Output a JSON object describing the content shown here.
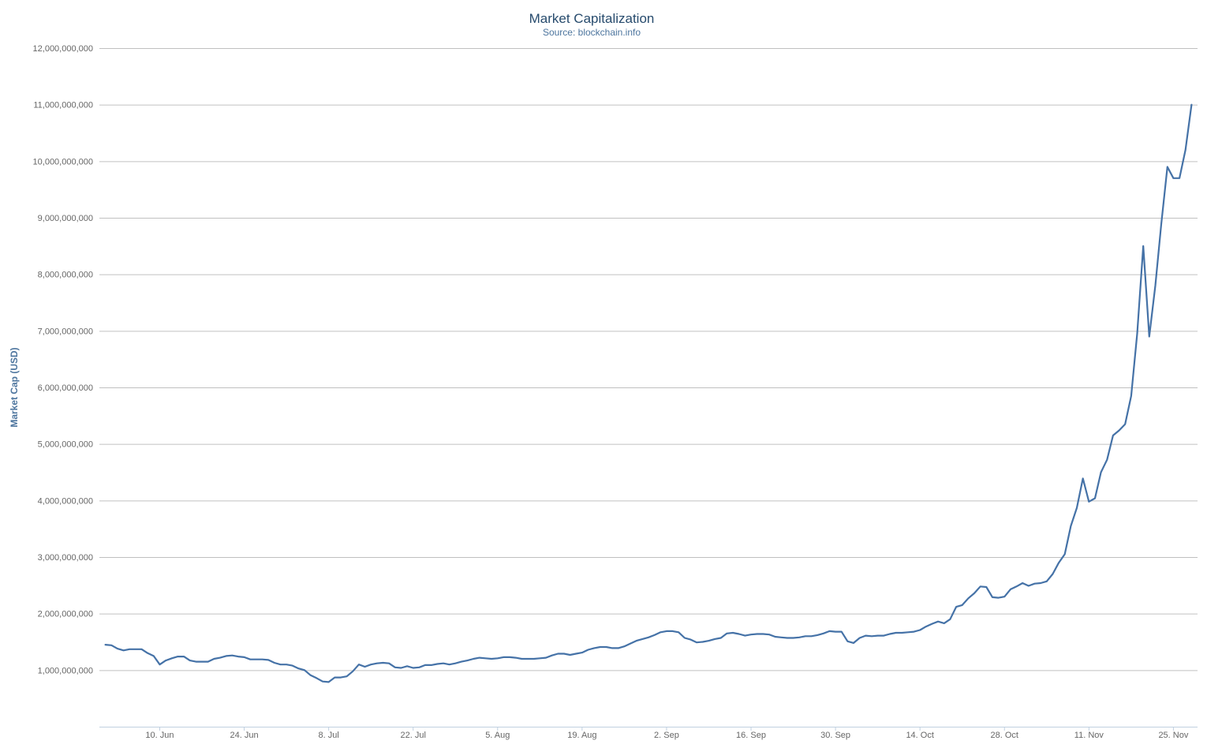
{
  "chart_data": {
    "type": "line",
    "title": "Market Capitalization",
    "subtitle": "Source: blockchain.info",
    "ylabel": "Market Cap (USD)",
    "xlabel": "",
    "x_range": [
      "2013-05-31",
      "2013-11-29"
    ],
    "ylim": [
      0,
      12000000000
    ],
    "grid": true,
    "legend": "none",
    "y_ticks": [
      {
        "value": 1000000000,
        "label": "1,000,000,000"
      },
      {
        "value": 2000000000,
        "label": "2,000,000,000"
      },
      {
        "value": 3000000000,
        "label": "3,000,000,000"
      },
      {
        "value": 4000000000,
        "label": "4,000,000,000"
      },
      {
        "value": 5000000000,
        "label": "5,000,000,000"
      },
      {
        "value": 6000000000,
        "label": "6,000,000,000"
      },
      {
        "value": 7000000000,
        "label": "7,000,000,000"
      },
      {
        "value": 8000000000,
        "label": "8,000,000,000"
      },
      {
        "value": 9000000000,
        "label": "9,000,000,000"
      },
      {
        "value": 10000000000,
        "label": "10,000,000,000"
      },
      {
        "value": 11000000000,
        "label": "11,000,000,000"
      },
      {
        "value": 12000000000,
        "label": "12,000,000,000"
      }
    ],
    "x_ticks": [
      {
        "date": "2013-06-10",
        "label": "10. Jun"
      },
      {
        "date": "2013-06-24",
        "label": "24. Jun"
      },
      {
        "date": "2013-07-08",
        "label": "8. Jul"
      },
      {
        "date": "2013-07-22",
        "label": "22. Jul"
      },
      {
        "date": "2013-08-05",
        "label": "5. Aug"
      },
      {
        "date": "2013-08-19",
        "label": "19. Aug"
      },
      {
        "date": "2013-09-02",
        "label": "2. Sep"
      },
      {
        "date": "2013-09-16",
        "label": "16. Sep"
      },
      {
        "date": "2013-09-30",
        "label": "30. Sep"
      },
      {
        "date": "2013-10-14",
        "label": "14. Oct"
      },
      {
        "date": "2013-10-28",
        "label": "28. Oct"
      },
      {
        "date": "2013-11-11",
        "label": "11. Nov"
      },
      {
        "date": "2013-11-25",
        "label": "25. Nov"
      }
    ],
    "series": [
      {
        "color": "#4572a7",
        "points": [
          [
            "2013-06-01",
            1450000000
          ],
          [
            "2013-06-02",
            1440000000
          ],
          [
            "2013-06-03",
            1380000000
          ],
          [
            "2013-06-04",
            1350000000
          ],
          [
            "2013-06-05",
            1370000000
          ],
          [
            "2013-06-06",
            1370000000
          ],
          [
            "2013-06-07",
            1370000000
          ],
          [
            "2013-06-08",
            1300000000
          ],
          [
            "2013-06-09",
            1250000000
          ],
          [
            "2013-06-10",
            1100000000
          ],
          [
            "2013-06-11",
            1170000000
          ],
          [
            "2013-06-12",
            1210000000
          ],
          [
            "2013-06-13",
            1240000000
          ],
          [
            "2013-06-14",
            1240000000
          ],
          [
            "2013-06-15",
            1170000000
          ],
          [
            "2013-06-16",
            1150000000
          ],
          [
            "2013-06-17",
            1150000000
          ],
          [
            "2013-06-18",
            1150000000
          ],
          [
            "2013-06-19",
            1200000000
          ],
          [
            "2013-06-20",
            1220000000
          ],
          [
            "2013-06-21",
            1250000000
          ],
          [
            "2013-06-22",
            1260000000
          ],
          [
            "2013-06-23",
            1240000000
          ],
          [
            "2013-06-24",
            1230000000
          ],
          [
            "2013-06-25",
            1190000000
          ],
          [
            "2013-06-26",
            1190000000
          ],
          [
            "2013-06-27",
            1190000000
          ],
          [
            "2013-06-28",
            1180000000
          ],
          [
            "2013-06-29",
            1130000000
          ],
          [
            "2013-06-30",
            1100000000
          ],
          [
            "2013-07-01",
            1100000000
          ],
          [
            "2013-07-02",
            1080000000
          ],
          [
            "2013-07-03",
            1030000000
          ],
          [
            "2013-07-04",
            1000000000
          ],
          [
            "2013-07-05",
            910000000
          ],
          [
            "2013-07-06",
            860000000
          ],
          [
            "2013-07-07",
            800000000
          ],
          [
            "2013-07-08",
            790000000
          ],
          [
            "2013-07-09",
            870000000
          ],
          [
            "2013-07-10",
            870000000
          ],
          [
            "2013-07-11",
            890000000
          ],
          [
            "2013-07-12",
            980000000
          ],
          [
            "2013-07-13",
            1100000000
          ],
          [
            "2013-07-14",
            1060000000
          ],
          [
            "2013-07-15",
            1100000000
          ],
          [
            "2013-07-16",
            1120000000
          ],
          [
            "2013-07-17",
            1130000000
          ],
          [
            "2013-07-18",
            1120000000
          ],
          [
            "2013-07-19",
            1050000000
          ],
          [
            "2013-07-20",
            1040000000
          ],
          [
            "2013-07-21",
            1070000000
          ],
          [
            "2013-07-22",
            1040000000
          ],
          [
            "2013-07-23",
            1050000000
          ],
          [
            "2013-07-24",
            1090000000
          ],
          [
            "2013-07-25",
            1090000000
          ],
          [
            "2013-07-26",
            1110000000
          ],
          [
            "2013-07-27",
            1120000000
          ],
          [
            "2013-07-28",
            1100000000
          ],
          [
            "2013-07-29",
            1120000000
          ],
          [
            "2013-07-30",
            1150000000
          ],
          [
            "2013-07-31",
            1170000000
          ],
          [
            "2013-08-01",
            1200000000
          ],
          [
            "2013-08-02",
            1220000000
          ],
          [
            "2013-08-03",
            1210000000
          ],
          [
            "2013-08-04",
            1200000000
          ],
          [
            "2013-08-05",
            1210000000
          ],
          [
            "2013-08-06",
            1230000000
          ],
          [
            "2013-08-07",
            1230000000
          ],
          [
            "2013-08-08",
            1220000000
          ],
          [
            "2013-08-09",
            1200000000
          ],
          [
            "2013-08-10",
            1200000000
          ],
          [
            "2013-08-11",
            1200000000
          ],
          [
            "2013-08-12",
            1210000000
          ],
          [
            "2013-08-13",
            1220000000
          ],
          [
            "2013-08-14",
            1260000000
          ],
          [
            "2013-08-15",
            1290000000
          ],
          [
            "2013-08-16",
            1290000000
          ],
          [
            "2013-08-17",
            1270000000
          ],
          [
            "2013-08-18",
            1290000000
          ],
          [
            "2013-08-19",
            1310000000
          ],
          [
            "2013-08-20",
            1360000000
          ],
          [
            "2013-08-21",
            1390000000
          ],
          [
            "2013-08-22",
            1410000000
          ],
          [
            "2013-08-23",
            1410000000
          ],
          [
            "2013-08-24",
            1390000000
          ],
          [
            "2013-08-25",
            1390000000
          ],
          [
            "2013-08-26",
            1420000000
          ],
          [
            "2013-08-27",
            1470000000
          ],
          [
            "2013-08-28",
            1520000000
          ],
          [
            "2013-08-29",
            1550000000
          ],
          [
            "2013-08-30",
            1580000000
          ],
          [
            "2013-08-31",
            1620000000
          ],
          [
            "2013-09-01",
            1670000000
          ],
          [
            "2013-09-02",
            1690000000
          ],
          [
            "2013-09-03",
            1690000000
          ],
          [
            "2013-09-04",
            1670000000
          ],
          [
            "2013-09-05",
            1570000000
          ],
          [
            "2013-09-06",
            1540000000
          ],
          [
            "2013-09-07",
            1490000000
          ],
          [
            "2013-09-08",
            1500000000
          ],
          [
            "2013-09-09",
            1520000000
          ],
          [
            "2013-09-10",
            1550000000
          ],
          [
            "2013-09-11",
            1570000000
          ],
          [
            "2013-09-12",
            1650000000
          ],
          [
            "2013-09-13",
            1660000000
          ],
          [
            "2013-09-14",
            1640000000
          ],
          [
            "2013-09-15",
            1610000000
          ],
          [
            "2013-09-16",
            1630000000
          ],
          [
            "2013-09-17",
            1640000000
          ],
          [
            "2013-09-18",
            1640000000
          ],
          [
            "2013-09-19",
            1630000000
          ],
          [
            "2013-09-20",
            1590000000
          ],
          [
            "2013-09-21",
            1580000000
          ],
          [
            "2013-09-22",
            1570000000
          ],
          [
            "2013-09-23",
            1570000000
          ],
          [
            "2013-09-24",
            1580000000
          ],
          [
            "2013-09-25",
            1600000000
          ],
          [
            "2013-09-26",
            1600000000
          ],
          [
            "2013-09-27",
            1620000000
          ],
          [
            "2013-09-28",
            1650000000
          ],
          [
            "2013-09-29",
            1690000000
          ],
          [
            "2013-09-30",
            1680000000
          ],
          [
            "2013-10-01",
            1680000000
          ],
          [
            "2013-10-02",
            1510000000
          ],
          [
            "2013-10-03",
            1480000000
          ],
          [
            "2013-10-04",
            1570000000
          ],
          [
            "2013-10-05",
            1610000000
          ],
          [
            "2013-10-06",
            1600000000
          ],
          [
            "2013-10-07",
            1610000000
          ],
          [
            "2013-10-08",
            1610000000
          ],
          [
            "2013-10-09",
            1640000000
          ],
          [
            "2013-10-10",
            1660000000
          ],
          [
            "2013-10-11",
            1660000000
          ],
          [
            "2013-10-12",
            1670000000
          ],
          [
            "2013-10-13",
            1680000000
          ],
          [
            "2013-10-14",
            1710000000
          ],
          [
            "2013-10-15",
            1770000000
          ],
          [
            "2013-10-16",
            1820000000
          ],
          [
            "2013-10-17",
            1860000000
          ],
          [
            "2013-10-18",
            1830000000
          ],
          [
            "2013-10-19",
            1900000000
          ],
          [
            "2013-10-20",
            2120000000
          ],
          [
            "2013-10-21",
            2150000000
          ],
          [
            "2013-10-22",
            2270000000
          ],
          [
            "2013-10-23",
            2360000000
          ],
          [
            "2013-10-24",
            2480000000
          ],
          [
            "2013-10-25",
            2470000000
          ],
          [
            "2013-10-26",
            2290000000
          ],
          [
            "2013-10-27",
            2280000000
          ],
          [
            "2013-10-28",
            2300000000
          ],
          [
            "2013-10-29",
            2430000000
          ],
          [
            "2013-10-30",
            2480000000
          ],
          [
            "2013-10-31",
            2540000000
          ],
          [
            "2013-11-01",
            2490000000
          ],
          [
            "2013-11-02",
            2530000000
          ],
          [
            "2013-11-03",
            2540000000
          ],
          [
            "2013-11-04",
            2570000000
          ],
          [
            "2013-11-05",
            2700000000
          ],
          [
            "2013-11-06",
            2900000000
          ],
          [
            "2013-11-07",
            3050000000
          ],
          [
            "2013-11-08",
            3550000000
          ],
          [
            "2013-11-09",
            3870000000
          ],
          [
            "2013-11-10",
            4390000000
          ],
          [
            "2013-11-11",
            3980000000
          ],
          [
            "2013-11-12",
            4040000000
          ],
          [
            "2013-11-13",
            4500000000
          ],
          [
            "2013-11-14",
            4720000000
          ],
          [
            "2013-11-15",
            5150000000
          ],
          [
            "2013-11-16",
            5240000000
          ],
          [
            "2013-11-17",
            5350000000
          ],
          [
            "2013-11-18",
            5850000000
          ],
          [
            "2013-11-19",
            6950000000
          ],
          [
            "2013-11-20",
            8500000000
          ],
          [
            "2013-11-21",
            6900000000
          ],
          [
            "2013-11-22",
            7800000000
          ],
          [
            "2013-11-23",
            8900000000
          ],
          [
            "2013-11-24",
            9900000000
          ],
          [
            "2013-11-25",
            9700000000
          ],
          [
            "2013-11-26",
            9700000000
          ],
          [
            "2013-11-27",
            10200000000
          ],
          [
            "2013-11-28",
            11000000000
          ]
        ]
      }
    ]
  }
}
